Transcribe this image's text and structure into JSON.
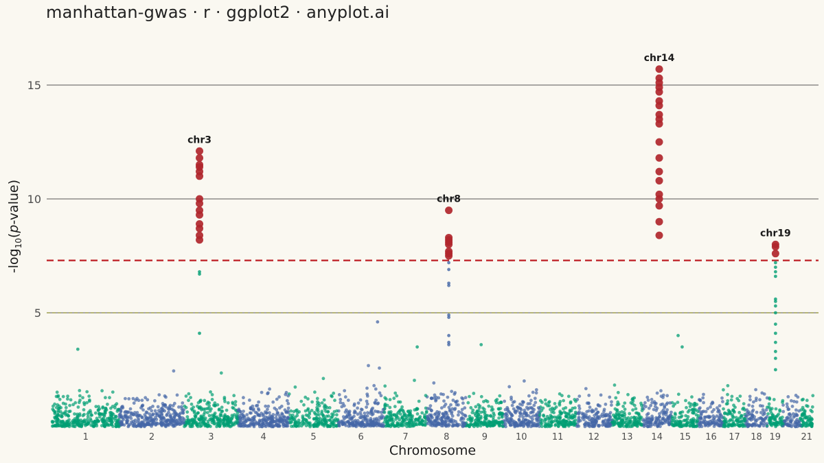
{
  "title": "manhattan-gwas · r · ggplot2 · anyplot.ai",
  "chart_data": {
    "type": "scatter",
    "xlabel": "Chromosome",
    "ylabel_base": "-log",
    "ylabel_sub": "10",
    "ylabel_open": "(",
    "ylabel_italic": "p",
    "ylabel_close": "-value)",
    "ylim": [
      0,
      17
    ],
    "yticks": [
      5,
      10,
      15
    ],
    "thresholds": {
      "genome_wide": 7.3,
      "suggestive": 5
    },
    "colors": {
      "odd": "#009E73",
      "even": "#4466A6",
      "significant": "#B0262C",
      "genome_wide_line": "#C0272D",
      "suggestive_line": "#8A8A30",
      "grid": "#555555"
    },
    "chromosomes": [
      {
        "label": "1",
        "start": 0,
        "end": 248
      },
      {
        "label": "2",
        "start": 248,
        "end": 490
      },
      {
        "label": "3",
        "start": 490,
        "end": 688
      },
      {
        "label": "4",
        "start": 688,
        "end": 878
      },
      {
        "label": "5",
        "start": 878,
        "end": 1059
      },
      {
        "label": "6",
        "start": 1059,
        "end": 1230
      },
      {
        "label": "7",
        "start": 1230,
        "end": 1389
      },
      {
        "label": "8",
        "start": 1389,
        "end": 1534
      },
      {
        "label": "9",
        "start": 1534,
        "end": 1672
      },
      {
        "label": "10",
        "start": 1672,
        "end": 1806
      },
      {
        "label": "11",
        "start": 1806,
        "end": 1941
      },
      {
        "label": "12",
        "start": 1941,
        "end": 2074
      },
      {
        "label": "13",
        "start": 2074,
        "end": 2188
      },
      {
        "label": "14",
        "start": 2188,
        "end": 2295
      },
      {
        "label": "15",
        "start": 2295,
        "end": 2397
      },
      {
        "label": "16",
        "start": 2397,
        "end": 2487
      },
      {
        "label": "17",
        "start": 2487,
        "end": 2570
      },
      {
        "label": "18",
        "start": 2570,
        "end": 2650
      },
      {
        "label": "19",
        "start": 2650,
        "end": 2709
      },
      {
        "label": "",
        "start": 2709,
        "end": 2773
      },
      {
        "label": "21",
        "start": 2773,
        "end": 2820
      }
    ],
    "peaks": [
      {
        "label": "chr3",
        "pos": 546,
        "max": 12.1,
        "significant": [
          12.1,
          11.8,
          11.5,
          11.4,
          11.2,
          11.0,
          10.0,
          9.8,
          9.5,
          9.3,
          8.9,
          8.7,
          8.4,
          8.2
        ],
        "subthreshold": [
          6.8,
          6.7,
          4.1
        ]
      },
      {
        "label": "chr8",
        "pos": 1470,
        "max": 9.5,
        "significant": [
          9.5,
          8.3,
          8.2,
          8.1,
          8.0,
          7.7,
          7.6,
          7.5
        ],
        "subthreshold": [
          7.2,
          6.9,
          6.3,
          6.2,
          4.9,
          4.8,
          4.0,
          3.7,
          3.6
        ]
      },
      {
        "label": "chr14",
        "pos": 2250,
        "max": 15.7,
        "significant": [
          15.7,
          15.3,
          15.1,
          14.9,
          14.7,
          14.3,
          14.1,
          13.7,
          13.5,
          13.3,
          12.5,
          11.8,
          11.2,
          10.8,
          10.2,
          10.0,
          9.7,
          9.0,
          8.4
        ],
        "subthreshold": []
      },
      {
        "label": "chr19",
        "pos": 2681,
        "max": 8.0,
        "significant": [
          8.0,
          7.9,
          7.6
        ],
        "subthreshold": [
          7.2,
          7.0,
          6.8,
          6.6,
          5.6,
          5.5,
          5.3,
          5.0,
          4.5,
          4.1,
          3.7,
          3.3,
          3.0,
          2.5
        ]
      }
    ],
    "isolated_points": [
      {
        "pos": 1206,
        "y": 4.6
      },
      {
        "pos": 2320,
        "y": 4.0
      },
      {
        "pos": 2335,
        "y": 3.5
      },
      {
        "pos": 1590,
        "y": 3.6
      },
      {
        "pos": 1353,
        "y": 3.5
      },
      {
        "pos": 95,
        "y": 3.4
      }
    ],
    "background_points": 3400,
    "grid": true,
    "legend": "none"
  }
}
